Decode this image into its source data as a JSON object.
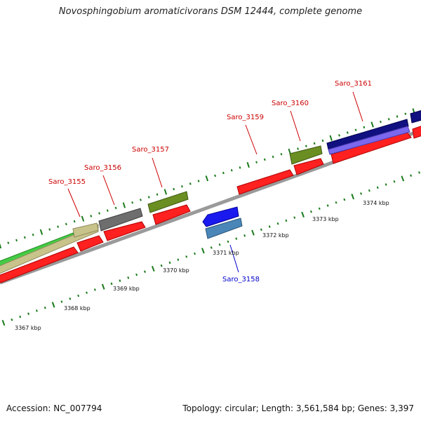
{
  "title": "Novosphingobium aromaticivorans DSM 12444, complete genome",
  "footer": {
    "accession": "Accession: NC_007794",
    "summary": "Topology: circular; Length: 3,561,584 bp; Genes: 3,397"
  },
  "colors": {
    "background": "#ffffff",
    "backbone": "#9a9a9a",
    "forward_label": "#cc0000",
    "reverse_label": "#0000cc",
    "cds": "#ff0000",
    "tick_major": "#1a7a1a",
    "tick_minor": "#1a7a1a"
  },
  "scale": {
    "unit": "kbp",
    "major_ticks": [
      {
        "kbp": 3367,
        "label": "3367 kbp"
      },
      {
        "kbp": 3368,
        "label": "3368 kbp"
      },
      {
        "kbp": 3369,
        "label": "3369 kbp"
      },
      {
        "kbp": 3370,
        "label": "3370 kbp"
      },
      {
        "kbp": 3371,
        "label": "3371 kbp"
      },
      {
        "kbp": 3372,
        "label": "3372 kbp"
      },
      {
        "kbp": 3373,
        "label": "3373 kbp"
      },
      {
        "kbp": 3374,
        "label": "3374 kbp"
      }
    ]
  },
  "genes": [
    {
      "name": "Saro_3155",
      "strand": "forward"
    },
    {
      "name": "Saro_3156",
      "strand": "forward"
    },
    {
      "name": "Saro_3157",
      "strand": "forward"
    },
    {
      "name": "Saro_3158",
      "strand": "reverse"
    },
    {
      "name": "Saro_3159",
      "strand": "forward"
    },
    {
      "name": "Saro_3160",
      "strand": "forward"
    },
    {
      "name": "Saro_3161",
      "strand": "forward"
    }
  ]
}
